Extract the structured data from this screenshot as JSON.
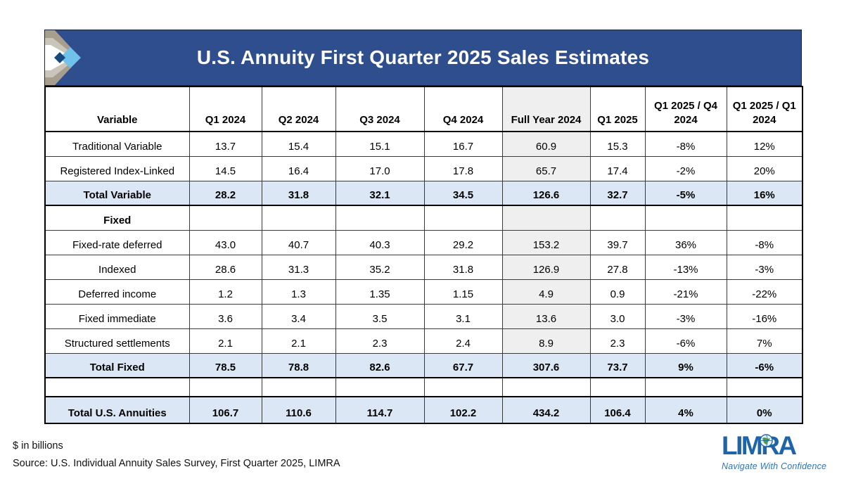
{
  "title": "U.S. Annuity First Quarter 2025 Sales Estimates",
  "chart_data": {
    "type": "table",
    "title": "U.S. Annuity First Quarter 2025 Sales Estimates",
    "units": "$ in billions",
    "gray_column": "Full Year 2024",
    "columns": [
      "Variable",
      "Q1 2024",
      "Q2 2024",
      "Q3 2024",
      "Q4 2024",
      "Full Year 2024",
      "Q1 2025",
      "Q1 2025 / Q4 2024",
      "Q1 2025 / Q1 2024"
    ],
    "rows": [
      {
        "type": "data",
        "label": "Traditional Variable",
        "values": [
          "13.7",
          "15.4",
          "15.1",
          "16.7",
          "60.9",
          "15.3",
          "-8%",
          "12%"
        ]
      },
      {
        "type": "data",
        "label": "Registered Index-Linked",
        "values": [
          "14.5",
          "16.4",
          "17.0",
          "17.8",
          "65.7",
          "17.4",
          "-2%",
          "20%"
        ]
      },
      {
        "type": "total",
        "label": "Total Variable",
        "values": [
          "28.2",
          "31.8",
          "32.1",
          "34.5",
          "126.6",
          "32.7",
          "-5%",
          "16%"
        ]
      },
      {
        "type": "section",
        "label": "Fixed",
        "values": [
          "",
          "",
          "",
          "",
          "",
          "",
          "",
          ""
        ]
      },
      {
        "type": "data",
        "label": "Fixed-rate deferred",
        "values": [
          "43.0",
          "40.7",
          "40.3",
          "29.2",
          "153.2",
          "39.7",
          "36%",
          "-8%"
        ]
      },
      {
        "type": "data",
        "label": "Indexed",
        "values": [
          "28.6",
          "31.3",
          "35.2",
          "31.8",
          "126.9",
          "27.8",
          "-13%",
          "-3%"
        ]
      },
      {
        "type": "data",
        "label": "Deferred income",
        "values": [
          "1.2",
          "1.3",
          "1.35",
          "1.15",
          "4.9",
          "0.9",
          "-21%",
          "-22%"
        ]
      },
      {
        "type": "data",
        "label": "Fixed immediate",
        "values": [
          "3.6",
          "3.4",
          "3.5",
          "3.1",
          "13.6",
          "3.0",
          "-3%",
          "-16%"
        ]
      },
      {
        "type": "data",
        "label": "Structured settlements",
        "values": [
          "2.1",
          "2.1",
          "2.3",
          "2.4",
          "8.9",
          "2.3",
          "-6%",
          "7%"
        ]
      },
      {
        "type": "total",
        "label": "Total Fixed",
        "values": [
          "78.5",
          "78.8",
          "82.6",
          "67.7",
          "307.6",
          "73.7",
          "9%",
          "-6%"
        ]
      },
      {
        "type": "spacer",
        "label": "",
        "values": [
          "",
          "",
          "",
          "",
          "",
          "",
          "",
          ""
        ]
      },
      {
        "type": "grand",
        "label": "Total U.S. Annuities",
        "values": [
          "106.7",
          "110.6",
          "114.7",
          "102.2",
          "434.2",
          "106.4",
          "4%",
          "0%"
        ]
      }
    ]
  },
  "footnotes": {
    "units": "$ in billions",
    "source": "Source: U.S. Individual Annuity Sales Survey, First Quarter 2025, LIMRA"
  },
  "branding": {
    "logo_text": "LIMRA",
    "tagline": "Navigate With Confidence",
    "icons": [
      "limra-chevron-logo-icon",
      "globe-icon"
    ]
  },
  "colors": {
    "title_bar": "#2e4e8e",
    "total_row": "#dbe7f4",
    "full_year_column": "#efefef",
    "limra_blue": "#1d64a8",
    "chevron_tan": "#a89e8e",
    "chevron_gray": "#c9c5ba",
    "chevron_sky": "#6fc2ea",
    "chevron_navy": "#17497d"
  }
}
